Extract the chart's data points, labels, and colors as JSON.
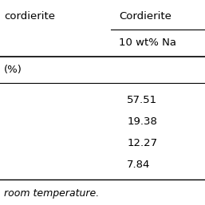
{
  "header_row1_col1": "cordierite",
  "header_row1_col2": "Cordierite",
  "header_row2_col2": "10 wt% Na",
  "subheader_col1": "(%)",
  "values_col2": [
    "57.51",
    "19.38",
    "12.27",
    "7.84"
  ],
  "footer": "room temperature.",
  "bg_color": "#ffffff",
  "text_color": "#000000",
  "font_size": 9.5,
  "fig_width": 2.57,
  "fig_height": 2.57
}
